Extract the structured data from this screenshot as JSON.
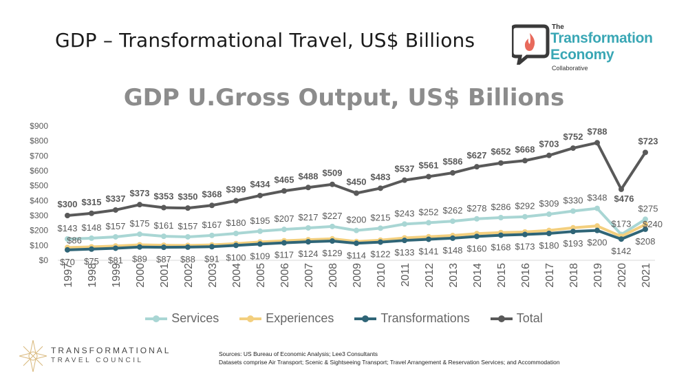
{
  "slide_title": "GDP – Transformational Travel, US$ Billions",
  "logo_top": {
    "line_the": "The",
    "line1": "Transformation",
    "line2": "Economy",
    "line3": "Collaborative"
  },
  "logo_bottom": {
    "line1": "TRANSFORMATIONAL",
    "line2": "TRAVEL COUNCIL"
  },
  "sources": {
    "line1": "Sources: US Bureau of Economic Analysis; Lee3 Consultants",
    "line2": "Datasets comprise Air Transport; Scenic & Sightseeing Transport; Travel Arrangement & Reservation Services; and Accommodation"
  },
  "colors": {
    "services": "#a9d6d4",
    "experiences": "#f3cf7e",
    "transformations": "#2f6577",
    "total": "#595959"
  },
  "chart_data": {
    "type": "line",
    "title": "GDP U.Gross Output, US$ Billions",
    "categories": [
      "1997",
      "1998",
      "1999",
      "2000",
      "2001",
      "2002",
      "2003",
      "2004",
      "2005",
      "2006",
      "2007",
      "2008",
      "2009",
      "2010",
      "2011",
      "2012",
      "2013",
      "2014",
      "2015",
      "2016",
      "2017",
      "2018",
      "2019",
      "2020",
      "2021"
    ],
    "y_ticks": [
      "$0",
      "$100",
      "$200",
      "$300",
      "$400",
      "$500",
      "$600",
      "$700",
      "$800",
      "$900"
    ],
    "ylim": [
      0,
      900
    ],
    "grid": false,
    "legend": "bottom",
    "series": [
      {
        "name": "Services",
        "values": [
          143,
          148,
          157,
          175,
          161,
          157,
          167,
          180,
          195,
          207,
          217,
          227,
          200,
          215,
          243,
          252,
          262,
          278,
          286,
          292,
          309,
          330,
          348,
          173,
          275
        ],
        "labels": [
          "$143",
          "$148",
          "$157",
          "$175",
          "$161",
          "$157",
          "$167",
          "$180",
          "$195",
          "$207",
          "$217",
          "$227",
          "$200",
          "$215",
          "$243",
          "$252",
          "$262",
          "$278",
          "$286",
          "$292",
          "$309",
          "$330",
          "$348",
          "$173",
          "$275"
        ]
      },
      {
        "name": "Experiences",
        "values": [
          86,
          90,
          96,
          104,
          101,
          100,
          103,
          112,
          123,
          131,
          138,
          144,
          126,
          135,
          150,
          158,
          166,
          179,
          186,
          190,
          200,
          218,
          230,
          160,
          240
        ],
        "labels": {
          "0": "$86",
          "24": "$240"
        }
      },
      {
        "name": "Transformations",
        "values": [
          70,
          75,
          81,
          89,
          87,
          88,
          91,
          100,
          109,
          117,
          124,
          129,
          114,
          122,
          133,
          141,
          148,
          160,
          168,
          173,
          180,
          193,
          200,
          142,
          208
        ],
        "labels": [
          "$70",
          "$75",
          "$81",
          "$89",
          "$87",
          "$88",
          "$91",
          "$100",
          "$109",
          "$117",
          "$124",
          "$129",
          "$114",
          "$122",
          "$133",
          "$141",
          "$148",
          "$160",
          "$168",
          "$173",
          "$180",
          "$193",
          "$200",
          "$142",
          "$208"
        ]
      },
      {
        "name": "Total",
        "values": [
          300,
          315,
          337,
          373,
          353,
          350,
          368,
          399,
          434,
          465,
          488,
          509,
          450,
          483,
          537,
          561,
          586,
          627,
          652,
          668,
          703,
          752,
          788,
          476,
          723
        ],
        "labels": [
          "$300",
          "$315",
          "$337",
          "$373",
          "$353",
          "$350",
          "$368",
          "$399",
          "$434",
          "$465",
          "$488",
          "$509",
          "$450",
          "$483",
          "$537",
          "$561",
          "$586",
          "$627",
          "$652",
          "$668",
          "$703",
          "$752",
          "$788",
          "$476",
          "$723"
        ]
      }
    ]
  }
}
